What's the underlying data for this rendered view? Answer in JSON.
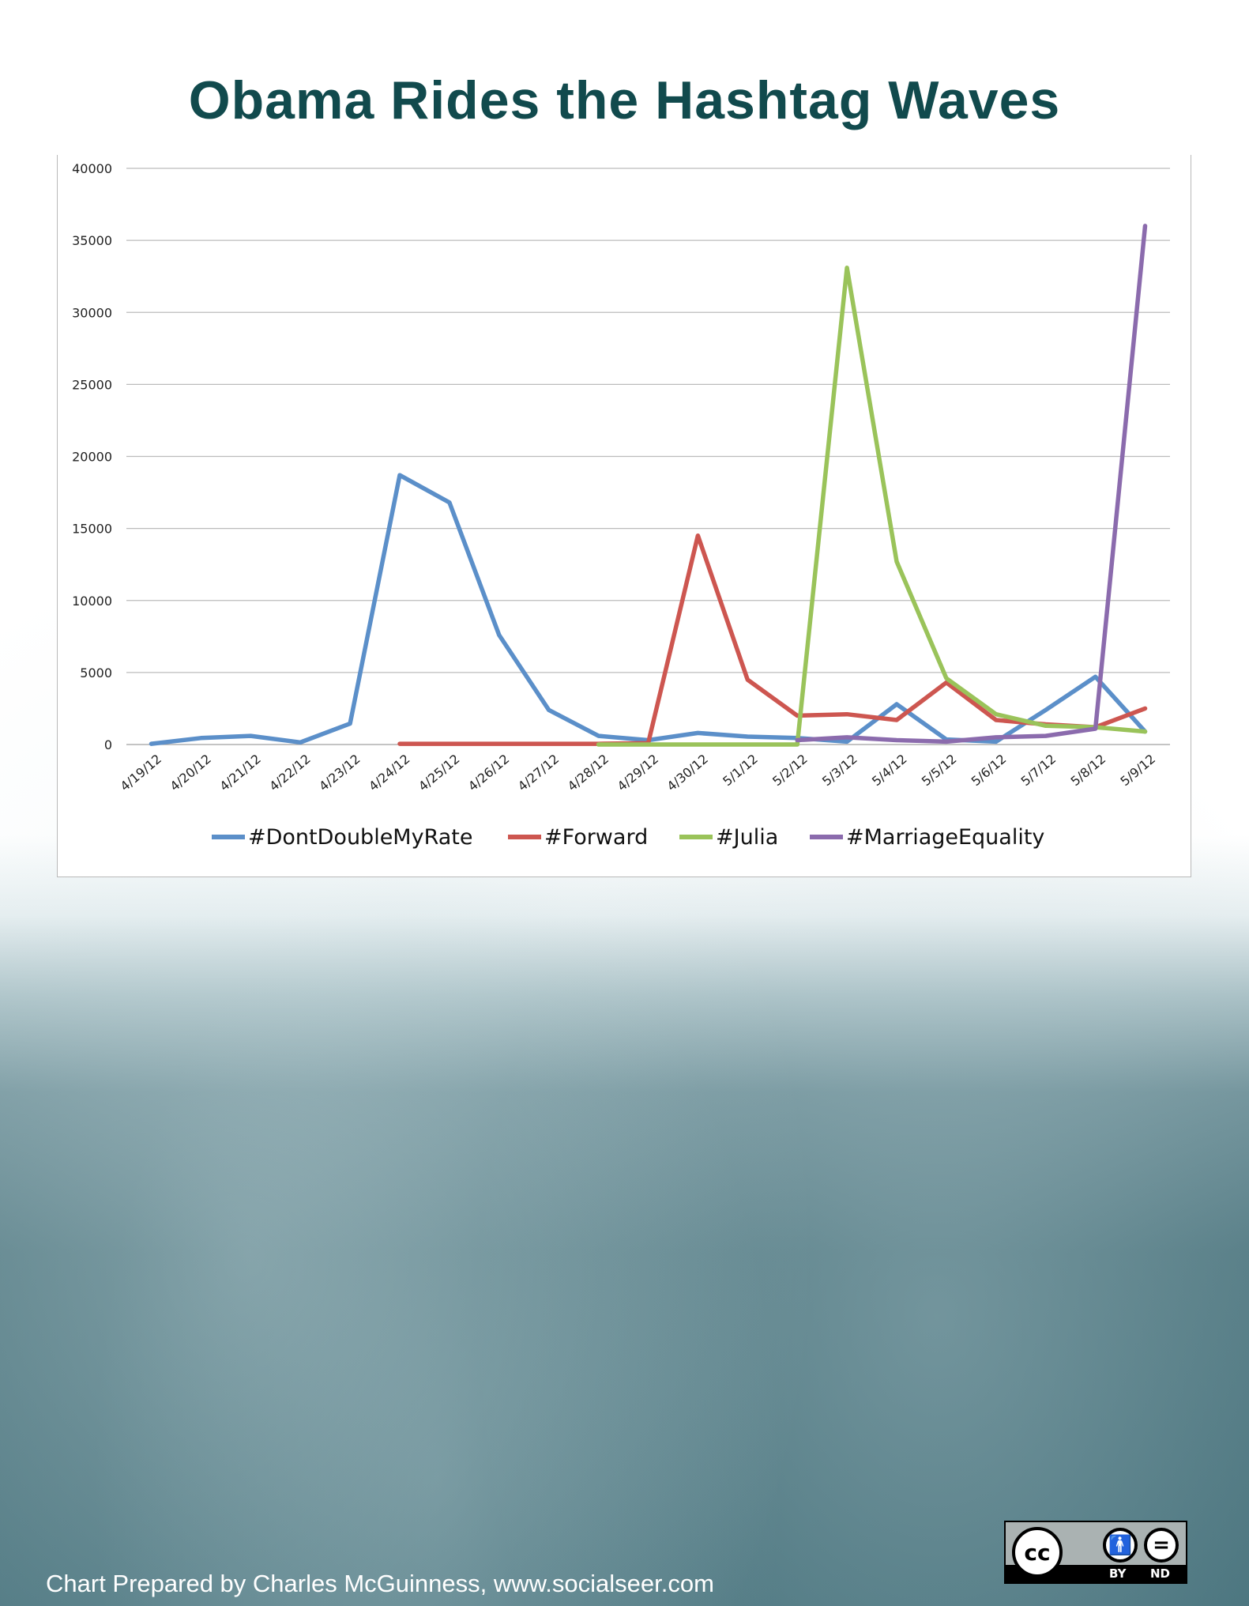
{
  "title": "Obama Rides the Hashtag Waves",
  "footer": {
    "credit": "Chart Prepared by Charles McGuinness, www.socialseer.com",
    "license": {
      "cc": "cc",
      "by": "BY",
      "nd": "ND"
    }
  },
  "chart_data": {
    "type": "line",
    "categories": [
      "4/19/12",
      "4/20/12",
      "4/21/12",
      "4/22/12",
      "4/23/12",
      "4/24/12",
      "4/25/12",
      "4/26/12",
      "4/27/12",
      "4/28/12",
      "4/29/12",
      "4/30/12",
      "5/1/12",
      "5/2/12",
      "5/3/12",
      "5/4/12",
      "5/5/12",
      "5/6/12",
      "5/7/12",
      "5/8/12",
      "5/9/12"
    ],
    "ylim": [
      0,
      40000
    ],
    "yticks": [
      0,
      5000,
      10000,
      15000,
      20000,
      25000,
      30000,
      35000,
      40000
    ],
    "grid": true,
    "legend_position": "bottom",
    "series": [
      {
        "name": "#DontDoubleMyRate",
        "color": "#5b8fc9",
        "values": [
          50,
          450,
          600,
          150,
          1450,
          18700,
          16800,
          7600,
          2400,
          600,
          300,
          800,
          550,
          450,
          200,
          2800,
          350,
          200,
          2400,
          4700,
          900
        ]
      },
      {
        "name": "#Forward",
        "color": "#cd5650",
        "values": [
          null,
          null,
          null,
          null,
          null,
          50,
          50,
          50,
          50,
          50,
          100,
          14500,
          4500,
          2000,
          2100,
          1700,
          4300,
          1700,
          1400,
          1200,
          2500
        ]
      },
      {
        "name": "#Julia",
        "color": "#9ac35a",
        "values": [
          null,
          null,
          null,
          null,
          null,
          null,
          null,
          null,
          null,
          0,
          0,
          0,
          0,
          0,
          33100,
          12700,
          4600,
          2100,
          1300,
          1200,
          900
        ]
      },
      {
        "name": "#MarriageEquality",
        "color": "#8b6bad",
        "values": [
          null,
          null,
          null,
          null,
          null,
          null,
          null,
          null,
          null,
          null,
          null,
          null,
          null,
          300,
          500,
          300,
          200,
          500,
          600,
          1100,
          36000
        ]
      }
    ]
  }
}
